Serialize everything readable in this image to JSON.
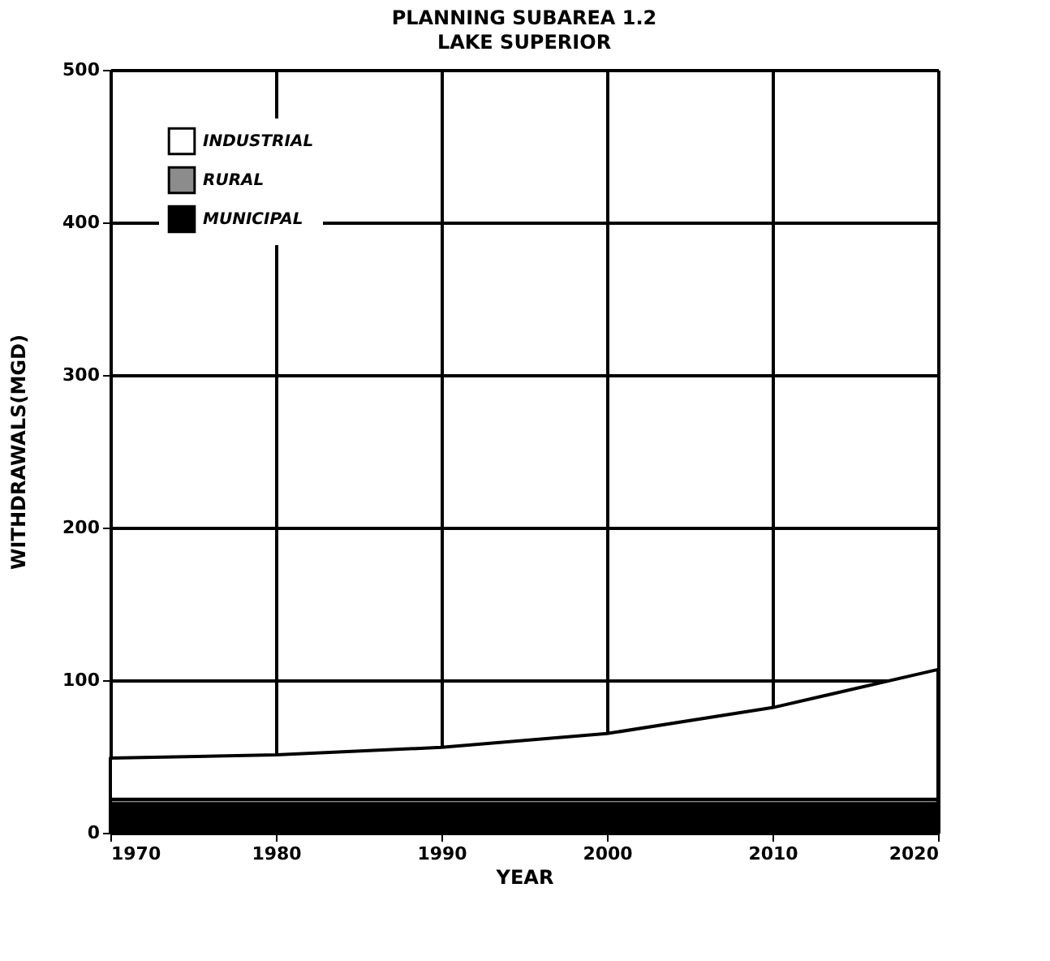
{
  "chart_data": {
    "type": "area",
    "stacked": true,
    "title": "PLANNING SUBAREA 1.2",
    "subtitle": "LAKE SUPERIOR",
    "xlabel": "YEAR",
    "ylabel": "WITHDRAWALS(MGD)",
    "x": [
      1970,
      1980,
      1990,
      2000,
      2010,
      2020
    ],
    "series": [
      {
        "name": "MUNICIPAL",
        "color": "#000000",
        "values": [
          19,
          19,
          19,
          19,
          19,
          19
        ]
      },
      {
        "name": "RURAL",
        "color": "#8c8c8c",
        "values": [
          3,
          3,
          3,
          3,
          3,
          3
        ]
      },
      {
        "name": "INDUSTRIAL",
        "color": "#ffffff",
        "values": [
          27,
          29,
          34,
          43,
          60,
          85
        ]
      }
    ],
    "xlim": [
      1970,
      2020
    ],
    "xticks": [
      1970,
      1980,
      1990,
      2000,
      2010,
      2020
    ],
    "ylim": [
      0,
      500
    ],
    "yticks": [
      0,
      100,
      200,
      300,
      400,
      500
    ],
    "grid": true,
    "legend": "top left"
  }
}
